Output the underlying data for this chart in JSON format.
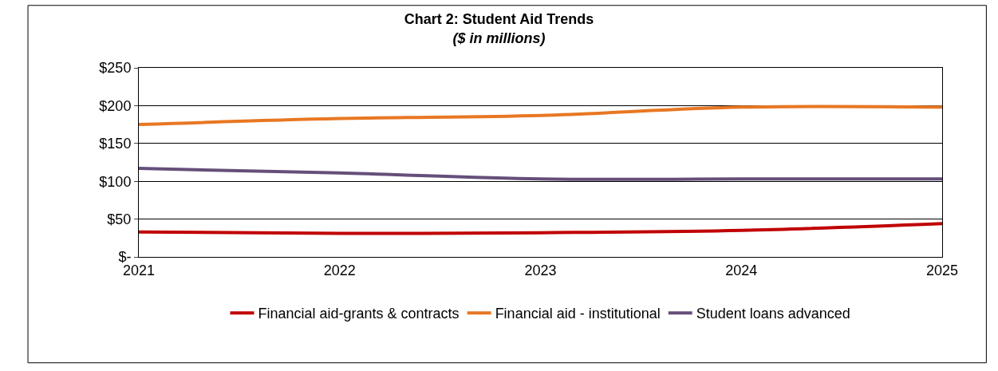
{
  "chart_data": {
    "type": "line",
    "title": "Chart 2: Student Aid Trends",
    "subtitle": "($ in millions)",
    "x": [
      2021,
      2022,
      2023,
      2024,
      2025
    ],
    "series": [
      {
        "name": "Financial aid-grants & contracts",
        "color": "#c00000",
        "values": [
          33,
          31,
          32,
          35,
          44
        ]
      },
      {
        "name": "Financial aid - institutional",
        "color": "#e87722",
        "values": [
          175,
          183,
          187,
          198,
          198
        ]
      },
      {
        "name": "Student loans advanced",
        "color": "#654f7a",
        "values": [
          117,
          111,
          103,
          103,
          103
        ]
      }
    ],
    "xlim": [
      2021,
      2025
    ],
    "xticks": [
      2021,
      2022,
      2023,
      2024,
      2025
    ],
    "ylim": [
      0,
      250
    ],
    "yticks": [
      {
        "value": 0,
        "label": "$-"
      },
      {
        "value": 50,
        "label": "$50"
      },
      {
        "value": 100,
        "label": "$100"
      },
      {
        "value": 150,
        "label": "$150"
      },
      {
        "value": 200,
        "label": "$200"
      },
      {
        "value": 250,
        "label": "$250"
      }
    ],
    "grid": "y",
    "legend": "bottom",
    "marker": "none",
    "line_style": "solid"
  }
}
